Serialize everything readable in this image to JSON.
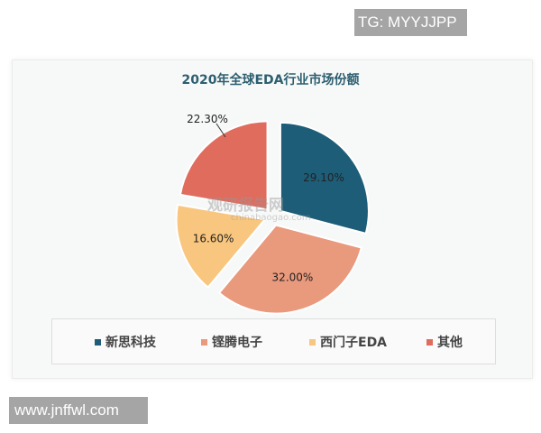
{
  "watermarks": {
    "top_right": "TG: MYYJJPP",
    "bottom_left": "www.jnffwl.com",
    "logo": "观研报告网",
    "logo_url": "chinabaogao.com"
  },
  "chart_data": {
    "type": "pie",
    "title": "2020年全球EDA行业市场份额",
    "categories": [
      "新思科技",
      "铿腾电子",
      "西门子EDA",
      "其他"
    ],
    "values": [
      29.1,
      32.0,
      16.6,
      22.3
    ],
    "labels": [
      "29.10%",
      "32.00%",
      "16.60%",
      "22.30%"
    ],
    "colors": [
      "#1e5d78",
      "#e9997c",
      "#f8c67e",
      "#e06c5e"
    ],
    "exploded": true,
    "legend": "bottom"
  }
}
